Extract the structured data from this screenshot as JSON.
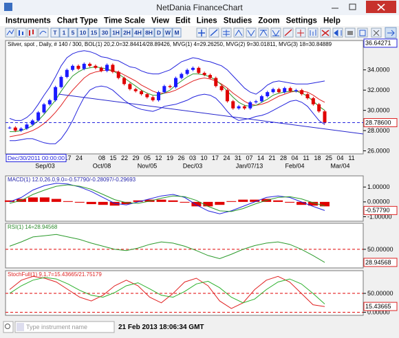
{
  "window": {
    "title": "NetDania FinanceChart"
  },
  "menu": [
    "Instruments",
    "Chart Type",
    "Time Scale",
    "View",
    "Edit",
    "Lines",
    "Studies",
    "Zoom",
    "Settings",
    "Help"
  ],
  "toolbar": {
    "buttons": [
      "T",
      "1",
      "5",
      "10",
      "15",
      "30",
      "1H",
      "2H",
      "4H",
      "8H",
      "D",
      "W",
      "M"
    ]
  },
  "status": {
    "placeholder": "Type instrument name",
    "time": "21 Feb 2013 18:06:34 GMT"
  },
  "chart_data": [
    {
      "type": "candlestick",
      "title": "Silver, spot , Daily, # 140 / 300, BOL(1) 20,2.0=32.84414/28.89426, MVG(1) 4=29.26250, MVG(2) 9=30.01811, MVG(3) 18=30.84889",
      "title_color": "#000000",
      "date_label": "Dec/30/2011 00:00:00",
      "colors": {
        "up": "#1a1aff",
        "down": "#e00000"
      },
      "values": [
        28.3,
        28.0,
        28.2,
        28.6,
        29.0,
        29.8,
        30.6,
        31.0,
        32.3,
        33.3,
        34.0,
        34.4,
        34.1,
        34.6,
        34.4,
        34.2,
        33.9,
        34.5,
        33.8,
        33.2,
        32.6,
        32.1,
        31.9,
        31.6,
        31.3,
        31.0,
        31.8,
        32.4,
        32.3,
        33.2,
        33.6,
        34.0,
        34.2,
        33.7,
        33.5,
        33.2,
        32.4,
        32.0,
        30.9,
        30.2,
        30.4,
        30.2,
        30.8,
        30.9,
        31.4,
        31.8,
        32.1,
        31.8,
        32.2,
        31.9,
        32.0,
        31.6,
        31.2,
        30.6,
        29.9,
        28.8
      ],
      "series": [
        {
          "color": "#2222dd",
          "values": [
            29.2,
            29.0,
            29.0,
            29.3,
            29.8,
            30.6,
            31.5,
            32.3,
            33.3,
            34.4,
            35.2,
            35.6,
            35.8,
            35.9,
            35.8,
            35.6,
            35.3,
            35.2,
            35.0,
            34.9,
            34.6,
            34.3,
            34.2,
            33.9,
            33.7,
            33.6,
            33.6,
            33.8,
            34.0,
            34.4,
            34.8,
            35.0,
            35.2,
            35.1,
            34.9,
            34.8,
            34.6,
            34.4,
            34.0,
            33.4,
            32.8,
            32.2,
            31.8,
            31.6,
            32.0,
            32.5,
            32.8,
            32.9,
            32.8,
            32.7,
            32.6,
            32.6,
            32.6,
            32.7,
            32.8,
            32.9
          ]
        },
        {
          "color": "#2222dd",
          "values": [
            27.0,
            27.0,
            27.1,
            27.2,
            27.2,
            27.0,
            26.8,
            26.7,
            26.7,
            27.2,
            28.0,
            29.0,
            30.2,
            31.3,
            32.0,
            32.3,
            32.4,
            32.3,
            32.0,
            31.5,
            31.0,
            30.6,
            30.3,
            30.1,
            30.0,
            29.9,
            30.1,
            30.4,
            30.5,
            30.6,
            30.8,
            31.0,
            31.3,
            31.5,
            31.6,
            31.5,
            31.2,
            30.6,
            29.9,
            29.3,
            29.0,
            29.1,
            29.2,
            29.4,
            29.5,
            29.7,
            30.0,
            30.3,
            30.6,
            30.9,
            31.0,
            30.8,
            30.4,
            29.7,
            29.0,
            28.6
          ]
        },
        {
          "color": "#e02020",
          "values": [
            27.4,
            27.5,
            27.6,
            27.8,
            28.0,
            28.3,
            28.7,
            29.2,
            29.8,
            30.5,
            31.3,
            32.0,
            32.6,
            33.2,
            33.6,
            33.8,
            33.9,
            34.0,
            33.9,
            33.8,
            33.5,
            33.2,
            32.9,
            32.5,
            32.2,
            31.9,
            31.7,
            31.7,
            31.8,
            32.0,
            32.3,
            32.6,
            32.9,
            33.1,
            33.2,
            33.1,
            32.9,
            32.6,
            32.2,
            31.7,
            31.3,
            30.9,
            30.6,
            30.5,
            30.6,
            30.8,
            31.1,
            31.4,
            31.6,
            31.8,
            31.9,
            31.9,
            31.8,
            31.5,
            31.1,
            30.8
          ]
        },
        {
          "color": "#2a9a2a",
          "values": [
            27.9,
            27.9,
            28.0,
            28.2,
            28.5,
            29.0,
            29.6,
            30.3,
            31.0,
            31.9,
            32.7,
            33.4,
            33.8,
            34.1,
            34.2,
            34.3,
            34.2,
            34.1,
            33.9,
            33.6,
            33.2,
            32.8,
            32.4,
            32.0,
            31.7,
            31.5,
            31.5,
            31.7,
            32.0,
            32.5,
            32.9,
            33.3,
            33.6,
            33.6,
            33.5,
            33.3,
            33.0,
            32.5,
            31.9,
            31.3,
            30.8,
            30.5,
            30.4,
            30.5,
            30.8,
            31.1,
            31.5,
            31.7,
            31.8,
            31.9,
            31.9,
            31.7,
            31.4,
            30.9,
            30.4,
            30.0
          ]
        }
      ],
      "ylim": [
        25.7,
        36.9
      ],
      "yticks": [
        {
          "value": 26,
          "label": "26.0000"
        },
        {
          "value": 28,
          "label": "28.0000"
        },
        {
          "value": 30,
          "label": "30.0000"
        },
        {
          "value": 32,
          "label": "32.0000"
        },
        {
          "value": 34,
          "label": "34.0000"
        }
      ],
      "top_label": 36.64271,
      "last": {
        "value": 28.786,
        "label": "28.78600"
      },
      "week_labels": [
        null,
        null,
        "17",
        "24",
        null,
        "08",
        "15",
        "22",
        "29",
        "05",
        "12",
        "19",
        "26",
        "03",
        "10",
        "17",
        "24",
        "31",
        "07",
        "14",
        "21",
        "28",
        "04",
        "11",
        "18",
        "25",
        "04",
        "11"
      ],
      "month_labels": [
        "Sep/03",
        null,
        null,
        null,
        null,
        "Oct/08",
        null,
        null,
        null,
        "Nov/05",
        null,
        null,
        null,
        "Dec/03",
        null,
        null,
        null,
        null,
        "Jan/07/13",
        null,
        null,
        null,
        "Feb/04",
        null,
        null,
        null,
        "Mar/04",
        null
      ]
    },
    {
      "type": "macd",
      "title": "MACD(1) 12.0,26.0,9.0=-0.57790/-0.28097/-0.29693",
      "title_color": "#2222aa",
      "histogram": {
        "color": "#e00000",
        "values": [
          0.1,
          0.2,
          0.3,
          0.3,
          0.2,
          0.05,
          -0.05,
          -0.15,
          -0.2,
          -0.25,
          -0.15,
          0.1,
          0.15,
          0.15,
          0.1,
          -0.05,
          -0.3,
          -0.3,
          -0.2,
          0.05,
          0.15,
          0.15,
          0.2,
          0.1,
          -0.05,
          -0.2,
          -0.25,
          -0.3
        ]
      },
      "series": [
        {
          "color": "#2222dd",
          "values": [
            0.0,
            0.3,
            0.8,
            1.1,
            1.25,
            1.2,
            1.0,
            0.7,
            0.3,
            -0.1,
            -0.2,
            0.0,
            0.2,
            0.4,
            0.5,
            0.3,
            -0.2,
            -0.6,
            -0.8,
            -0.6,
            -0.3,
            0.0,
            0.3,
            0.4,
            0.3,
            0.0,
            -0.3,
            -0.5779
          ]
        },
        {
          "color": "#2a9a2a",
          "values": [
            -0.1,
            0.1,
            0.5,
            0.8,
            1.05,
            1.15,
            1.05,
            0.85,
            0.5,
            0.15,
            -0.05,
            -0.1,
            0.05,
            0.25,
            0.4,
            0.35,
            0.1,
            -0.3,
            -0.6,
            -0.65,
            -0.45,
            -0.15,
            0.1,
            0.3,
            0.35,
            0.2,
            -0.05,
            -0.28
          ]
        }
      ],
      "ylim": [
        -1.3,
        1.75
      ],
      "yticks": [
        {
          "value": 1,
          "label": "1.00000"
        },
        {
          "value": 0,
          "label": "0.00000"
        },
        {
          "value": -1,
          "label": "-1.00000"
        }
      ],
      "last": {
        "value": -0.5779,
        "label": "-0.57790"
      }
    },
    {
      "type": "oscillator",
      "title": "RSI(1) 14=28.94568",
      "title_color": "#2a8a2a",
      "series": [
        {
          "color": "#2a9a2a",
          "values": [
            55,
            62,
            70,
            72,
            74,
            70,
            66,
            60,
            55,
            50,
            48,
            52,
            58,
            62,
            60,
            55,
            48,
            40,
            35,
            42,
            50,
            56,
            60,
            62,
            58,
            50,
            40,
            29
          ]
        }
      ],
      "ylim": [
        20,
        92
      ],
      "yticks": [
        {
          "value": 50,
          "label": "50.00000"
        }
      ],
      "grid": true,
      "grid_color": "#e00000",
      "last": {
        "value": 28.94568,
        "label": "28.94568"
      }
    },
    {
      "type": "oscillator",
      "title": "StochFull(1) 9,1,7=15.43665/21.75179",
      "title_color": "#dd2222",
      "series": [
        {
          "color": "#e02020",
          "values": [
            60,
            85,
            95,
            90,
            80,
            60,
            40,
            30,
            45,
            70,
            85,
            70,
            40,
            25,
            50,
            80,
            90,
            70,
            30,
            10,
            25,
            60,
            85,
            95,
            80,
            50,
            20,
            15
          ]
        },
        {
          "color": "#2ab02a",
          "values": [
            50,
            70,
            85,
            92,
            88,
            75,
            58,
            45,
            40,
            52,
            70,
            78,
            62,
            45,
            40,
            55,
            75,
            82,
            65,
            40,
            25,
            35,
            60,
            80,
            88,
            75,
            50,
            22
          ]
        }
      ],
      "ylim": [
        -8,
        110
      ],
      "yticks": [
        {
          "value": 50,
          "label": "50.00000"
        },
        {
          "value": 0,
          "label": "0.00000"
        }
      ],
      "grid": true,
      "grid_color": "#e00000",
      "last": {
        "value": 15.43665,
        "label": "15.43665"
      }
    }
  ]
}
